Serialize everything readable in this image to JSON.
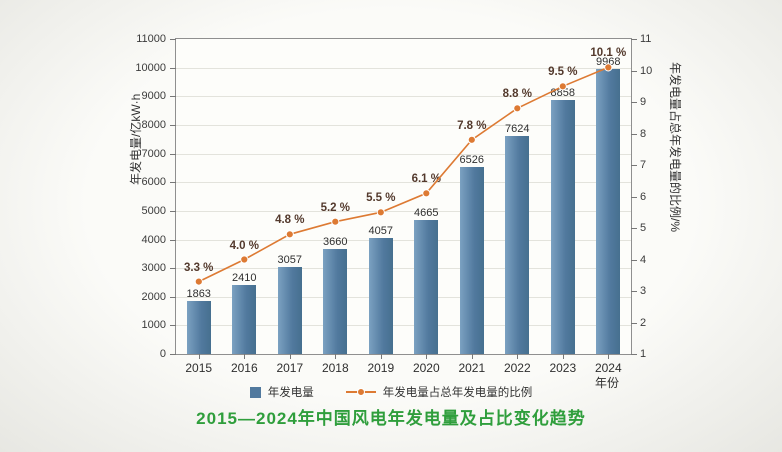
{
  "chart_data": {
    "type": "bar+line",
    "categories": [
      "2015",
      "2016",
      "2017",
      "2018",
      "2019",
      "2020",
      "2021",
      "2022",
      "2023",
      "2024"
    ],
    "series": [
      {
        "name": "年发电量",
        "type": "bar",
        "axis": "left",
        "values": [
          1863,
          2410,
          3057,
          3660,
          4057,
          4665,
          6526,
          7624,
          8858,
          9968
        ]
      },
      {
        "name": "年发电量占总年发电量的比例",
        "type": "line",
        "axis": "right",
        "values": [
          3.3,
          4.0,
          4.8,
          5.2,
          5.5,
          6.1,
          7.8,
          8.8,
          9.5,
          10.1
        ]
      }
    ],
    "pct_labels": [
      "3.3 %",
      "4.0 %",
      "4.8 %",
      "5.2 %",
      "5.5 %",
      "6.1 %",
      "7.8 %",
      "8.8 %",
      "9.5 %",
      "10.1 %"
    ],
    "title": "2015—2024年中国风电年发电量及占比变化趋势",
    "ylabel_left": "年发电量/亿kW·h",
    "ylabel_right": "年发电量占总年发电量的比例/%",
    "xlabel": "年份",
    "ylim_left": [
      0,
      11000
    ],
    "ytick_step_left": 1000,
    "ylim_right": [
      1,
      11
    ],
    "ytick_step_right": 1,
    "grid": true,
    "legend_position": "bottom",
    "colors": {
      "bar_light": "#7ba1c1",
      "bar": "#51799e",
      "bar_dark": "#46708f",
      "line": "#dd7a33",
      "pct_label": "#53392c",
      "value_label": "#2f2f2f",
      "title": "#2f9e3c"
    }
  }
}
